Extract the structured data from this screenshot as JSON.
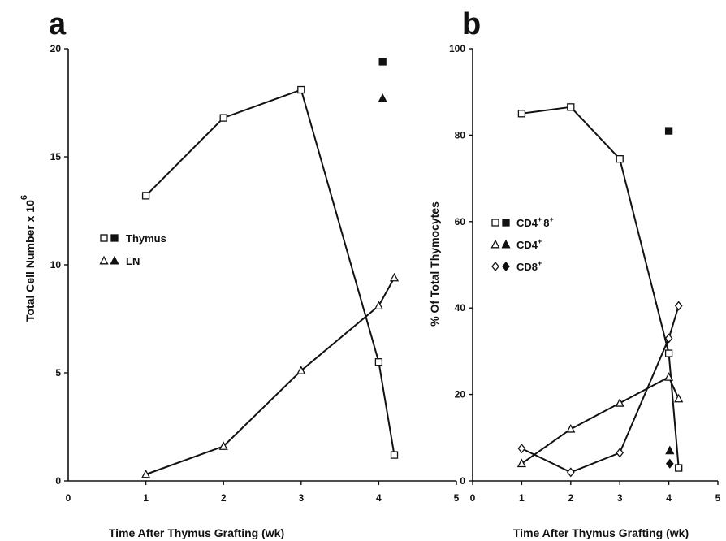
{
  "chart_data": [
    {
      "type": "line",
      "panel_label": "a",
      "xlabel": "Time After Thymus Grafting (wk)",
      "ylabel": "Total Cell Number x 10",
      "ylabel_exponent": "6",
      "xlim": [
        0,
        5
      ],
      "ylim": [
        0,
        20
      ],
      "x_ticks": [
        0,
        1,
        2,
        3,
        4,
        5
      ],
      "y_ticks": [
        0,
        5,
        10,
        15,
        20
      ],
      "grid": false,
      "legend_position": "center-left",
      "legend": [
        {
          "label": "Thymus",
          "open_marker": "square",
          "filled_marker": "square"
        },
        {
          "label": "LN",
          "open_marker": "triangle",
          "filled_marker": "triangle"
        }
      ],
      "series": [
        {
          "name": "Thymus",
          "marker": "square",
          "filled": false,
          "connected": true,
          "x": [
            1,
            2,
            3,
            4,
            4.2
          ],
          "y": [
            13.2,
            16.8,
            18.1,
            5.5,
            1.2
          ]
        },
        {
          "name": "LN",
          "marker": "triangle",
          "filled": false,
          "connected": true,
          "x": [
            1,
            2,
            3,
            4,
            4.2
          ],
          "y": [
            0.3,
            1.6,
            5.1,
            8.1,
            9.4
          ]
        },
        {
          "name": "Thymus",
          "marker": "square",
          "filled": true,
          "connected": false,
          "x": [
            4.05
          ],
          "y": [
            19.4
          ]
        },
        {
          "name": "LN",
          "marker": "triangle",
          "filled": true,
          "connected": false,
          "x": [
            4.05
          ],
          "y": [
            17.7
          ]
        }
      ]
    },
    {
      "type": "line",
      "panel_label": "b",
      "xlabel": "Time After Thymus Grafting (wk)",
      "ylabel": "% Of Total Thymocytes",
      "xlim": [
        0,
        5
      ],
      "ylim": [
        0,
        100
      ],
      "x_ticks": [
        0,
        1,
        2,
        3,
        4,
        5
      ],
      "y_ticks": [
        0,
        20,
        40,
        60,
        80,
        100
      ],
      "grid": false,
      "legend_position": "center-left",
      "legend": [
        {
          "label": "CD4",
          "sup1": "+",
          "mid": "8",
          "sup2": "+",
          "open_marker": "square",
          "filled_marker": "square"
        },
        {
          "label": "CD4",
          "sup1": "+",
          "mid": "",
          "sup2": "",
          "open_marker": "triangle",
          "filled_marker": "triangle"
        },
        {
          "label": "CD8",
          "sup1": "+",
          "mid": "",
          "sup2": "",
          "open_marker": "diamond",
          "filled_marker": "diamond"
        }
      ],
      "series": [
        {
          "name": "CD4+8+",
          "marker": "square",
          "filled": false,
          "connected": true,
          "x": [
            1,
            2,
            3,
            4,
            4.2
          ],
          "y": [
            85,
            86.5,
            74.5,
            29.5,
            3
          ]
        },
        {
          "name": "CD4+",
          "marker": "triangle",
          "filled": false,
          "connected": true,
          "x": [
            1,
            2,
            3,
            4,
            4.2
          ],
          "y": [
            4,
            12,
            18,
            24,
            19
          ]
        },
        {
          "name": "CD8+",
          "marker": "diamond",
          "filled": false,
          "connected": true,
          "x": [
            1,
            2,
            3,
            4,
            4.2
          ],
          "y": [
            7.5,
            2,
            6.5,
            33,
            40.5
          ]
        },
        {
          "name": "CD4+8+",
          "marker": "square",
          "filled": true,
          "connected": false,
          "x": [
            4
          ],
          "y": [
            81
          ]
        },
        {
          "name": "CD4+",
          "marker": "triangle",
          "filled": true,
          "connected": false,
          "x": [
            4.02
          ],
          "y": [
            7
          ]
        },
        {
          "name": "CD8+",
          "marker": "diamond",
          "filled": true,
          "connected": false,
          "x": [
            4.02
          ],
          "y": [
            4
          ]
        }
      ]
    }
  ]
}
